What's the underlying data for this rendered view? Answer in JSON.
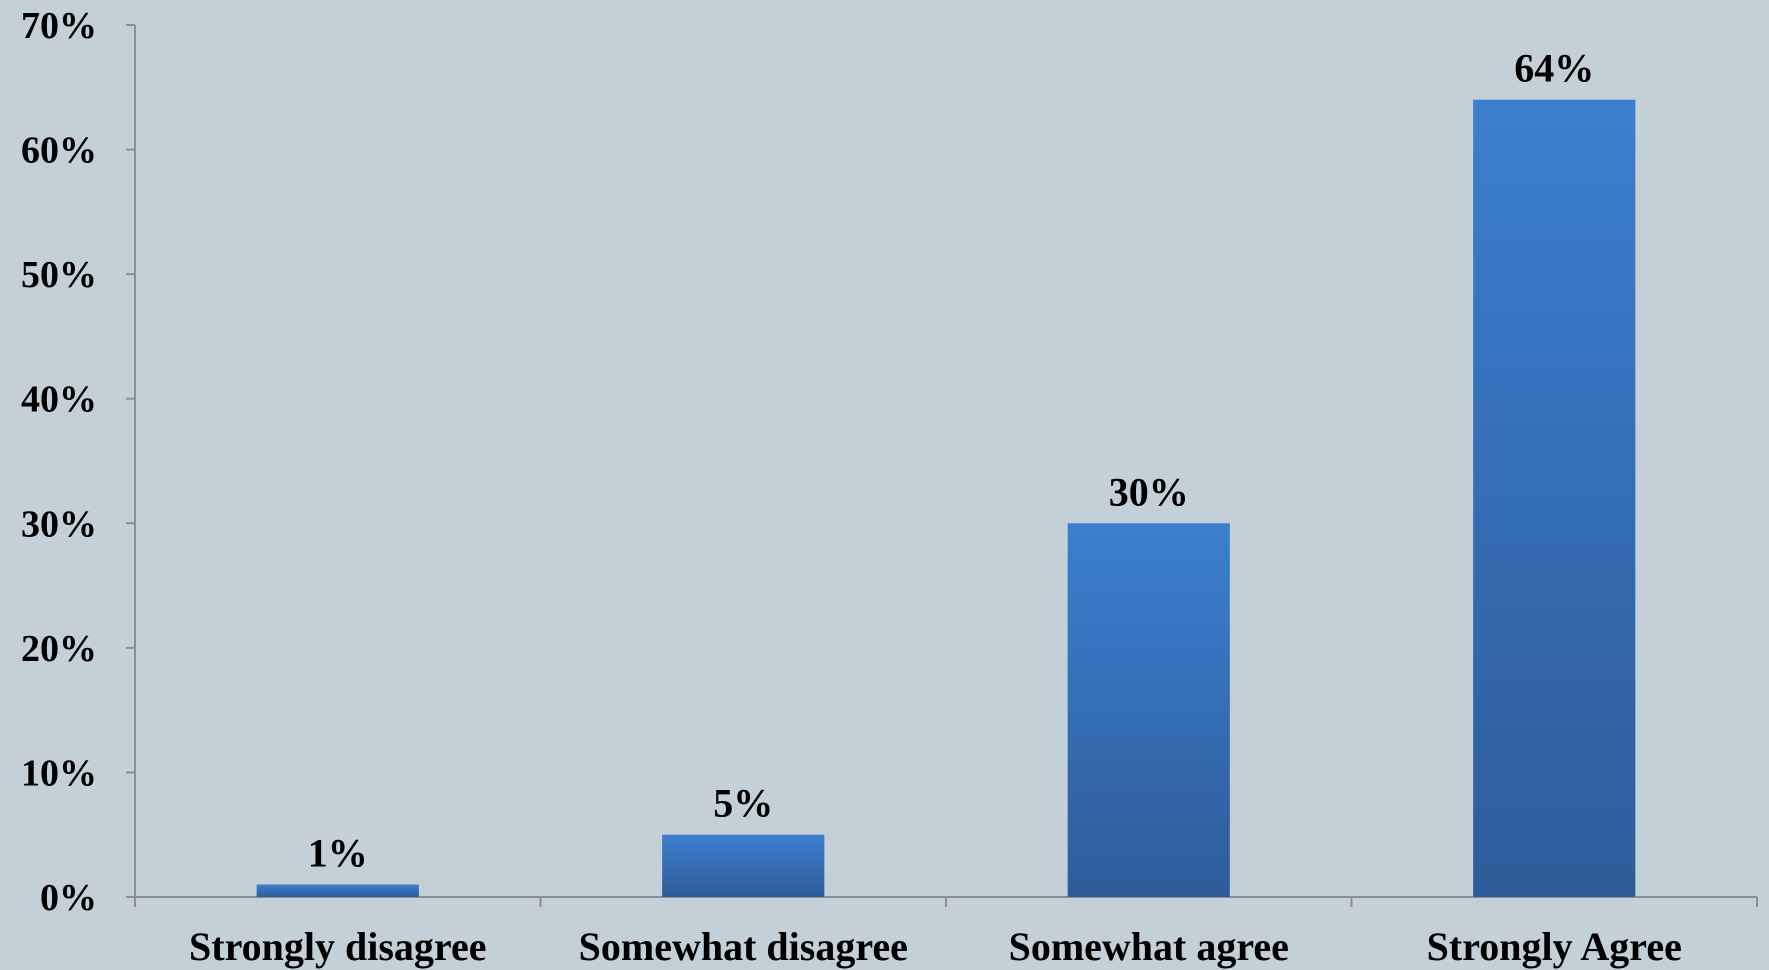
{
  "chart_data": {
    "type": "bar",
    "title": "",
    "xlabel": "",
    "ylabel": "",
    "categories": [
      "Strongly disagree",
      "Somewhat disagree",
      "Somewhat agree",
      "Strongly Agree"
    ],
    "values": [
      1,
      5,
      30,
      64
    ],
    "data_labels": [
      "1%",
      "5%",
      "30%",
      "64%"
    ],
    "ylim": [
      0,
      70
    ],
    "yticks": [
      0,
      10,
      20,
      30,
      40,
      50,
      60,
      70
    ],
    "ytick_labels": [
      "0%",
      "10%",
      "20%",
      "30%",
      "40%",
      "50%",
      "60%",
      "70%"
    ],
    "grid": false,
    "legend": "none",
    "colors": {
      "bar_top": "#3b7fce",
      "bar_bottom": "#2e5c99",
      "axis": "#8a8f94",
      "background": "#c4d0d7"
    }
  }
}
